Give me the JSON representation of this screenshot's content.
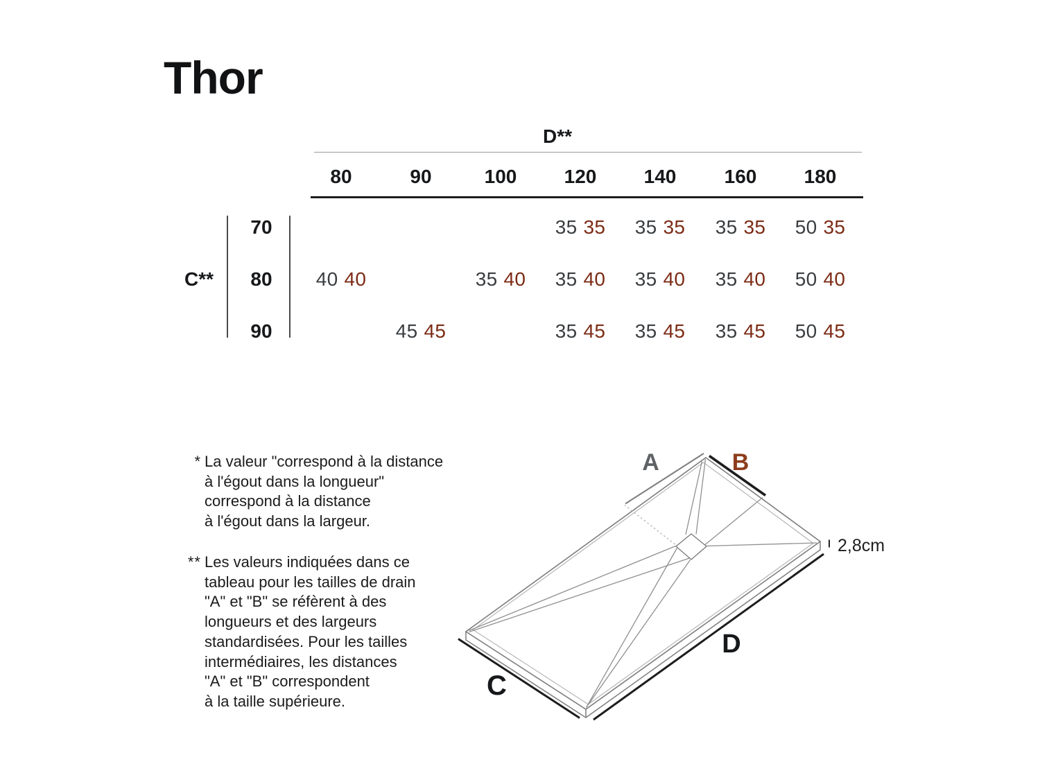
{
  "page": {
    "title": "Thor"
  },
  "colors": {
    "value_primary": "#3a3e41",
    "value_accent": "#7c2b15",
    "label_a": "#5f6366",
    "label_b": "#8e3d1d",
    "label_cd": "#16181a",
    "rule_bold": "#1e1e1e",
    "rule_thin": "#9b9b9b"
  },
  "table": {
    "col_axis_label": "D**",
    "row_axis_label": "C**",
    "columns": [
      "80",
      "90",
      "100",
      "120",
      "140",
      "160",
      "180"
    ],
    "rows": [
      {
        "label": "70",
        "cells": [
          null,
          null,
          null,
          [
            "35",
            "35"
          ],
          [
            "35",
            "35"
          ],
          [
            "35",
            "35"
          ],
          [
            "50",
            "35"
          ]
        ]
      },
      {
        "label": "80",
        "cells": [
          [
            "40",
            "40"
          ],
          null,
          [
            "35",
            "40"
          ],
          [
            "35",
            "40"
          ],
          [
            "35",
            "40"
          ],
          [
            "35",
            "40"
          ],
          [
            "50",
            "40"
          ]
        ]
      },
      {
        "label": "90",
        "cells": [
          null,
          [
            "45",
            "45"
          ],
          null,
          [
            "35",
            "45"
          ],
          [
            "35",
            "45"
          ],
          [
            "35",
            "45"
          ],
          [
            "50",
            "45"
          ]
        ]
      }
    ]
  },
  "notes": [
    {
      "marker": "*",
      "lines": [
        "La valeur \"correspond à la distance",
        "à l'égout dans la longueur\"",
        "correspond à la distance",
        "à l'égout dans la largeur."
      ]
    },
    {
      "marker": "**",
      "lines": [
        "Les valeurs indiquées dans ce",
        "tableau pour les tailles de drain",
        "\"A\" et \"B\" se réfèrent à des",
        "longueurs et des largeurs",
        "standardisées. Pour les tailles",
        "intermédiaires, les distances",
        "\"A\" et \"B\" correspondent",
        "à la taille supérieure."
      ]
    }
  ],
  "diagram": {
    "label_a": "A",
    "label_b": "B",
    "label_c": "C",
    "label_d": "D",
    "thickness": "2,8cm"
  }
}
